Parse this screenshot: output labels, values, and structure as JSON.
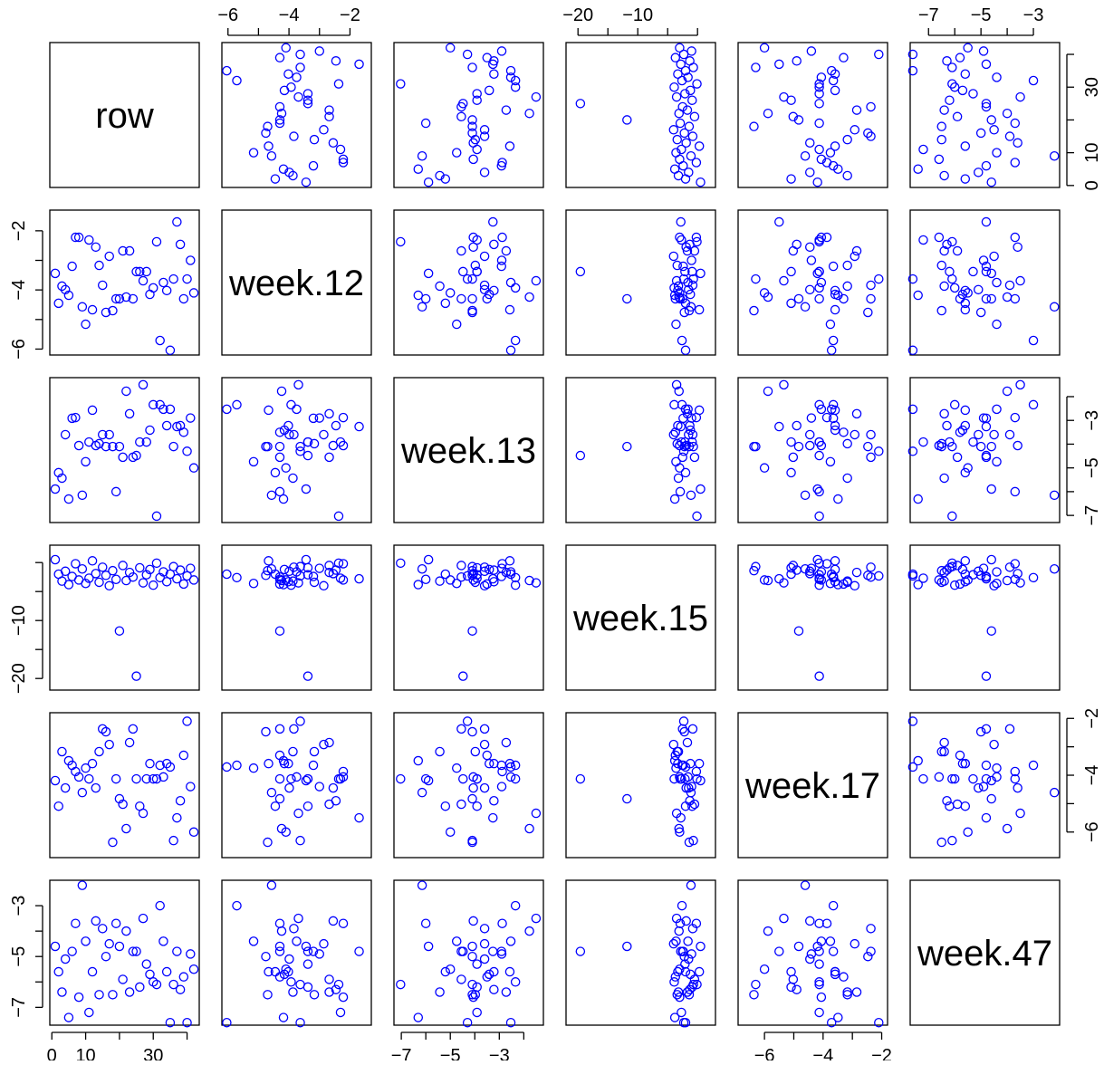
{
  "chart_data": {
    "type": "scatter-matrix",
    "color": "#0000ff",
    "marker": "open-circle",
    "variables": [
      {
        "name": "row",
        "lim": [
          -0.6,
          43.6
        ],
        "ticks": [
          0,
          10,
          {
            "value": 20,
            "label": null
          },
          30,
          {
            "value": 40,
            "label": null
          }
        ],
        "values": [
          1,
          2,
          3,
          4,
          5,
          6,
          7,
          8,
          9,
          10,
          11,
          12,
          13,
          14,
          15,
          16,
          17,
          18,
          19,
          20,
          21,
          22,
          23,
          24,
          25,
          26,
          27,
          28,
          29,
          30,
          31,
          32,
          33,
          34,
          35,
          36,
          37,
          38,
          39,
          40,
          41,
          42
        ]
      },
      {
        "name": "week.12",
        "lim": [
          -6.2,
          -1.3
        ],
        "ticks": [
          {
            "value": -6,
            "label": "−6"
          },
          {
            "value": -5,
            "label": null
          },
          {
            "value": -4,
            "label": "−4"
          },
          {
            "value": -3,
            "label": null
          },
          {
            "value": -2,
            "label": "−2"
          }
        ],
        "values": [
          -3.44,
          -4.45,
          -3.87,
          -3.99,
          -4.18,
          -3.2,
          -2.22,
          -2.22,
          -4.57,
          -5.16,
          -2.31,
          -4.67,
          -2.55,
          -3.17,
          -3.84,
          -4.76,
          -2.86,
          -4.7,
          -4.3,
          -4.3,
          -2.68,
          -4.24,
          -2.68,
          -4.3,
          -3.38,
          -3.38,
          -3.69,
          -3.38,
          -4.15,
          -3.93,
          -2.37,
          -5.71,
          -3.75,
          -4.02,
          -6.04,
          -3.63,
          -1.7,
          -2.46,
          -4.3,
          -3.63,
          -3.0,
          -4.1
        ]
      },
      {
        "name": "week.13",
        "lim": [
          -7.3,
          -1.2
        ],
        "ticks": [
          {
            "value": -7,
            "label": "−7"
          },
          {
            "value": -6,
            "label": null
          },
          {
            "value": -5,
            "label": "−5"
          },
          {
            "value": -4,
            "label": null
          },
          {
            "value": -3,
            "label": "−3"
          },
          {
            "value": -2,
            "label": null
          }
        ],
        "values": [
          -5.89,
          -5.2,
          -5.43,
          -3.6,
          -6.31,
          -2.91,
          -2.88,
          -4.06,
          -6.15,
          -4.74,
          -3.91,
          -2.57,
          -4.06,
          -3.98,
          -3.6,
          -4.1,
          -3.6,
          -4.1,
          -6.0,
          -4.1,
          -4.55,
          -1.77,
          -2.72,
          -4.55,
          -4.48,
          -3.91,
          -1.5,
          -3.91,
          -3.41,
          -2.34,
          -7.03,
          -2.34,
          -2.53,
          -3.22,
          -2.53,
          -4.1,
          -3.26,
          -3.22,
          -3.5,
          -4.3,
          -2.9,
          -5.0
        ]
      },
      {
        "name": "week.15",
        "lim": [
          -22,
          3
        ],
        "ticks": [
          {
            "value": -20,
            "label": "−20"
          },
          {
            "value": -15,
            "label": null
          },
          {
            "value": -10,
            "label": "−10"
          },
          {
            "value": -5,
            "label": null
          },
          {
            "value": 0,
            "label": null
          }
        ],
        "values": [
          0.5,
          -2.0,
          -3.2,
          -1.5,
          -3.8,
          -2.4,
          -0.2,
          -3.0,
          -1.1,
          -3.6,
          -2.7,
          0.3,
          -1.9,
          -3.4,
          -0.8,
          -2.2,
          -4.0,
          -1.4,
          -2.9,
          -11.8,
          -0.5,
          -3.1,
          -1.7,
          -2.5,
          -19.6,
          -0.9,
          -3.5,
          -2.1,
          -1.2,
          -3.9,
          -0.1,
          -2.6,
          -1.6,
          -3.3,
          -2.0,
          -0.7,
          -2.8,
          -1.3,
          -3.7,
          -2.3,
          -1.0,
          -3.0
        ]
      },
      {
        "name": "week.17",
        "lim": [
          -6.9,
          -1.8
        ],
        "ticks": [
          {
            "value": -6,
            "label": "−6"
          },
          {
            "value": -5,
            "label": null
          },
          {
            "value": -4,
            "label": "−4"
          },
          {
            "value": -3,
            "label": null
          },
          {
            "value": -2,
            "label": "−2"
          }
        ],
        "values": [
          -4.19,
          -5.09,
          -3.17,
          -4.45,
          -3.49,
          -3.65,
          -3.87,
          -4.06,
          -4.61,
          -3.75,
          -4.13,
          -3.59,
          -4.45,
          -3.17,
          -2.37,
          -2.47,
          -2.92,
          -6.36,
          -4.13,
          -4.83,
          -5.02,
          -5.88,
          -2.85,
          -2.37,
          -4.13,
          -5.09,
          -5.34,
          -4.13,
          -3.59,
          -4.13,
          -4.13,
          -3.65,
          -4.06,
          -3.59,
          -3.71,
          -6.3,
          -5.5,
          -4.9,
          -3.3,
          -2.1,
          -4.4,
          -6.0
        ]
      },
      {
        "name": "week.47",
        "lim": [
          -7.7,
          -2.0
        ],
        "ticks": [
          {
            "value": -7,
            "label": "−7"
          },
          {
            "value": -6,
            "label": null
          },
          {
            "value": -5,
            "label": "−5"
          },
          {
            "value": -4,
            "label": null
          },
          {
            "value": -3,
            "label": "−3"
          }
        ],
        "values": [
          -4.6,
          -5.6,
          -6.4,
          -5.1,
          -7.4,
          -4.8,
          -3.7,
          -6.6,
          -2.2,
          -4.4,
          -7.2,
          -5.6,
          -3.6,
          -6.5,
          -3.9,
          -5.0,
          -4.5,
          -6.5,
          -3.7,
          -4.6,
          -5.9,
          -4.0,
          -6.4,
          -4.8,
          -4.8,
          -6.2,
          -3.5,
          -5.3,
          -5.7,
          -6.0,
          -6.1,
          -3.0,
          -4.4,
          -5.6,
          -7.6,
          -6.1,
          -4.8,
          -6.3,
          -5.8,
          -7.6,
          -4.9,
          -5.5
        ]
      }
    ]
  }
}
